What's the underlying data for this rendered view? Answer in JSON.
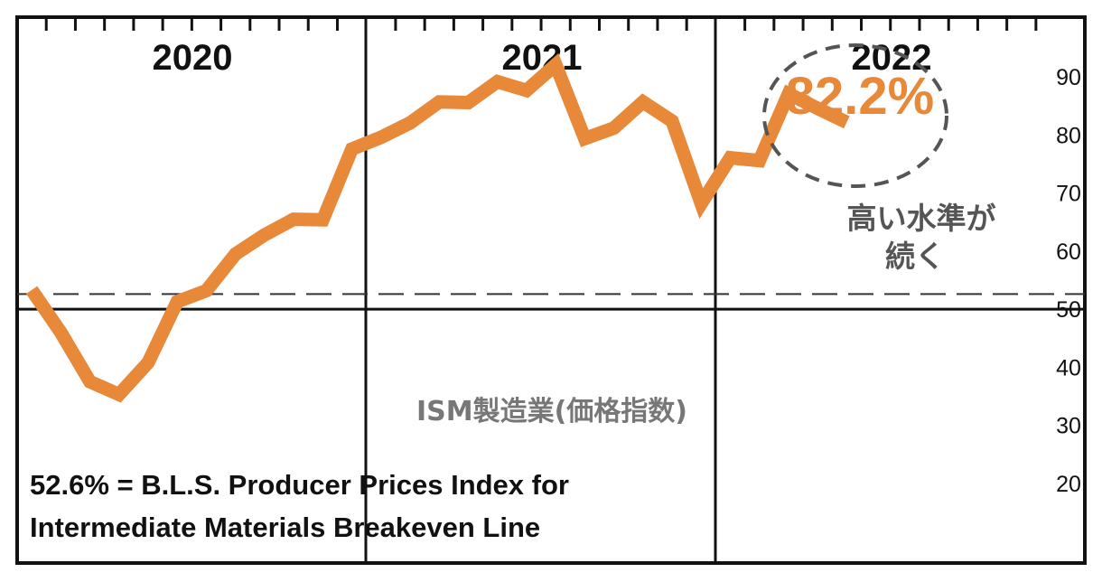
{
  "chart_data": {
    "type": "line",
    "year_labels": [
      "2020",
      "2021",
      "2022"
    ],
    "yticks": [
      20,
      30,
      40,
      50,
      60,
      70,
      80,
      90
    ],
    "ylim": [
      10,
      100
    ],
    "x": [
      "2020-01",
      "2020-02",
      "2020-03",
      "2020-04",
      "2020-05",
      "2020-06",
      "2020-07",
      "2020-08",
      "2020-09",
      "2020-10",
      "2020-11",
      "2020-12",
      "2021-01",
      "2021-02",
      "2021-03",
      "2021-04",
      "2021-05",
      "2021-06",
      "2021-07",
      "2021-08",
      "2021-09",
      "2021-10",
      "2021-11",
      "2021-12",
      "2022-01",
      "2022-02",
      "2022-03",
      "2022-04",
      "2022-05"
    ],
    "series": [
      {
        "values": [
          53.3,
          46,
          37.5,
          35.3,
          40.8,
          51.3,
          53.2,
          59.5,
          62.8,
          65.5,
          65.4,
          77.6,
          79.6,
          82.1,
          85.7,
          85.6,
          89.2,
          87.7,
          92.1,
          79.4,
          81.2,
          85.7,
          82.4,
          68.2,
          76.1,
          75.6,
          87.1,
          84.6,
          82.2
        ],
        "color": "#e8893a"
      }
    ],
    "reference_lines": [
      {
        "y": 52.6
      },
      {
        "y": 50
      }
    ],
    "callout": {
      "value_text": "82.2%",
      "text_line1": "高い水準が",
      "text_line2": "続く"
    },
    "series_title": "ISM製造業(価格指数)",
    "note_line1": "52.6% = B.L.S. Producer Prices Index for",
    "note_line2": "Intermediate Materials Breakeven Line"
  }
}
